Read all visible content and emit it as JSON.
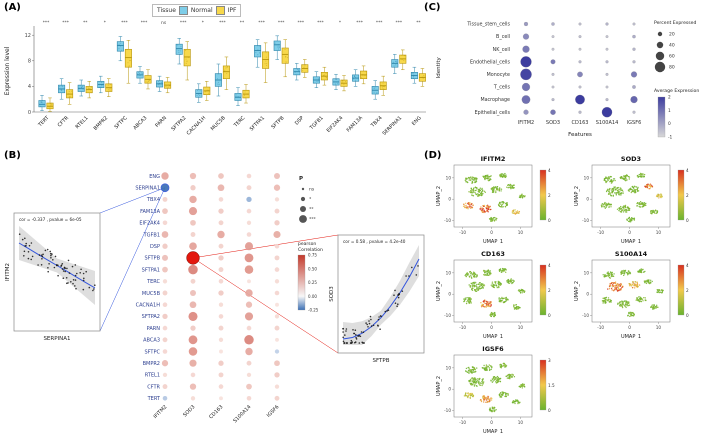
{
  "panels": {
    "a_label": "(A)",
    "b_label": "(B)",
    "c_label": "(C)",
    "d_label": "(D)"
  },
  "chart_data": [
    {
      "id": "A",
      "type": "box",
      "ylabel": "Expression level",
      "ylim": [
        0,
        12.5
      ],
      "yticks": [
        0,
        4,
        8,
        12
      ],
      "legend": {
        "title": "Tissue",
        "items": [
          "Normal",
          "IPF"
        ]
      },
      "categories": [
        "TERT",
        "CFTR",
        "RTEL1",
        "BMPR2",
        "SFTPC",
        "ABCA3",
        "PARN",
        "SFTPA2",
        "CACNA1H",
        "MUC5B",
        "TERC",
        "SFTPA1",
        "SFTPB",
        "DSP",
        "TGFB1",
        "EIF2AK4",
        "FAM13A",
        "TBX4",
        "SERPINA1",
        "ENG"
      ],
      "significance": [
        "***",
        "***",
        "**",
        "*",
        "***",
        "***",
        "ns",
        "***",
        "*",
        "***",
        "**",
        "***",
        "***",
        "***",
        "***",
        "*",
        "***",
        "***",
        "***",
        "**"
      ],
      "series": [
        {
          "name": "Normal",
          "fill": "#7ECDE8",
          "stroke": "#2E86AB",
          "boxes": [
            [
              0.2,
              0.8,
              1.2,
              1.8,
              2.6
            ],
            [
              2.0,
              3.0,
              3.6,
              4.2,
              5.2
            ],
            [
              2.5,
              3.2,
              3.7,
              4.2,
              5.0
            ],
            [
              3.0,
              3.8,
              4.3,
              4.8,
              5.6
            ],
            [
              8.0,
              9.5,
              10.4,
              11.0,
              11.8
            ],
            [
              4.5,
              5.3,
              5.8,
              6.3,
              7.1
            ],
            [
              3.2,
              3.9,
              4.4,
              4.9,
              5.6
            ],
            [
              7.5,
              9.0,
              9.9,
              10.6,
              11.5
            ],
            [
              1.5,
              2.3,
              2.9,
              3.5,
              4.4
            ],
            [
              2.5,
              4.0,
              5.0,
              6.0,
              7.5
            ],
            [
              1.0,
              1.8,
              2.3,
              2.9,
              3.8
            ],
            [
              7.0,
              8.6,
              9.6,
              10.4,
              11.3
            ],
            [
              8.2,
              9.6,
              10.5,
              11.1,
              11.9
            ],
            [
              5.0,
              5.8,
              6.3,
              6.8,
              7.6
            ],
            [
              3.8,
              4.5,
              5.0,
              5.5,
              6.3
            ],
            [
              3.5,
              4.2,
              4.7,
              5.2,
              5.9
            ],
            [
              4.0,
              4.8,
              5.3,
              5.8,
              6.6
            ],
            [
              2.0,
              2.8,
              3.4,
              4.0,
              4.9
            ],
            [
              6.0,
              7.0,
              7.6,
              8.2,
              9.0
            ],
            [
              4.5,
              5.2,
              5.7,
              6.2,
              7.0
            ]
          ]
        },
        {
          "name": "IPF",
          "fill": "#F7D84B",
          "stroke": "#B7950B",
          "boxes": [
            [
              0.1,
              0.5,
              0.9,
              1.4,
              2.2
            ],
            [
              1.2,
              2.2,
              2.8,
              3.5,
              4.6
            ],
            [
              2.2,
              3.0,
              3.5,
              4.0,
              4.8
            ],
            [
              2.4,
              3.2,
              3.8,
              4.4,
              5.2
            ],
            [
              4.5,
              7.0,
              8.5,
              9.8,
              11.2
            ],
            [
              3.6,
              4.5,
              5.1,
              5.7,
              6.6
            ],
            [
              3.0,
              3.7,
              4.2,
              4.7,
              5.4
            ],
            [
              5.0,
              7.2,
              8.6,
              9.8,
              11.0
            ],
            [
              1.8,
              2.7,
              3.3,
              3.9,
              4.8
            ],
            [
              3.5,
              5.2,
              6.3,
              7.2,
              8.6
            ],
            [
              1.4,
              2.2,
              2.8,
              3.4,
              4.3
            ],
            [
              4.6,
              6.8,
              8.2,
              9.4,
              10.8
            ],
            [
              5.5,
              7.6,
              9.0,
              10.0,
              11.3
            ],
            [
              5.4,
              6.2,
              6.8,
              7.4,
              8.2
            ],
            [
              4.2,
              5.0,
              5.6,
              6.2,
              7.0
            ],
            [
              3.3,
              4.0,
              4.5,
              5.0,
              5.7
            ],
            [
              4.4,
              5.2,
              5.8,
              6.4,
              7.2
            ],
            [
              2.6,
              3.5,
              4.1,
              4.7,
              5.6
            ],
            [
              6.6,
              7.6,
              8.3,
              8.9,
              9.7
            ],
            [
              4.0,
              4.8,
              5.4,
              6.0,
              6.8
            ]
          ]
        }
      ]
    },
    {
      "id": "B",
      "type": "dot-matrix",
      "row_label_color": "#2c3e8f",
      "rows": [
        "ENG",
        "SERPINA1",
        "TBX4",
        "FAM13A",
        "EIF2AK4",
        "TGFB1",
        "DSP",
        "SFTPB",
        "SFTPA1",
        "TERC",
        "MUC5B",
        "CACNA1H",
        "SFTPA2",
        "PARN",
        "ABCA3",
        "SFTPC",
        "BMPR2",
        "RTEL1",
        "CFTR",
        "TERT"
      ],
      "cols": [
        "IFITM2",
        "SOD3",
        "CD163",
        "S100A14",
        "IGSF6"
      ],
      "values": [
        [
          0.3,
          0.22,
          0.18,
          0.1,
          0.2
        ],
        [
          -0.34,
          0.15,
          0.25,
          0.12,
          0.22
        ],
        [
          0.12,
          0.3,
          0.1,
          -0.15,
          0.08
        ],
        [
          0.18,
          0.35,
          0.15,
          0.1,
          0.12
        ],
        [
          0.1,
          0.18,
          0.12,
          0.08,
          0.15
        ],
        [
          0.25,
          0.12,
          0.3,
          0.1,
          0.28
        ],
        [
          0.15,
          0.32,
          0.12,
          0.35,
          0.1
        ],
        [
          0.2,
          0.58,
          0.15,
          0.4,
          0.12
        ],
        [
          0.18,
          0.45,
          0.12,
          0.38,
          0.1
        ],
        [
          0.08,
          0.12,
          0.1,
          0.05,
          0.08
        ],
        [
          0.12,
          0.2,
          0.15,
          0.3,
          0.1
        ],
        [
          0.1,
          0.25,
          0.08,
          0.22,
          0.05
        ],
        [
          0.15,
          0.42,
          0.1,
          0.35,
          0.08
        ],
        [
          0.1,
          0.15,
          0.12,
          0.1,
          0.12
        ],
        [
          0.12,
          0.4,
          0.08,
          0.45,
          0.05
        ],
        [
          0.1,
          0.38,
          0.05,
          0.3,
          -0.08
        ],
        [
          0.22,
          0.28,
          0.15,
          0.12,
          0.18
        ],
        [
          0.08,
          0.1,
          0.12,
          0.08,
          0.15
        ],
        [
          0.12,
          0.22,
          0.1,
          0.18,
          0.08
        ],
        [
          -0.1,
          0.08,
          0.05,
          0.1,
          0.12
        ]
      ],
      "size_legend": {
        "title": "P",
        "labels": [
          "ns",
          "*",
          "**",
          "***"
        ]
      },
      "color_legend": {
        "title_lines": [
          "pearson",
          "Correlation"
        ],
        "ticks": [
          0.75,
          0.5,
          0.25,
          0.0,
          -0.25
        ],
        "high": "#C3392B",
        "mid": "#F7F7F7",
        "low": "#3B6FB5"
      },
      "highlights": [
        {
          "row": "SFTPB",
          "col": "SOD3",
          "style": "red"
        },
        {
          "row": "SERPINA1",
          "col": "IFITM2",
          "style": "blue"
        }
      ],
      "insets": [
        {
          "xlabel": "SERPINA1",
          "ylabel": "IFITM2",
          "annotation": "cor = -0.337 , pvalue = 6e-05",
          "trend": "negative",
          "line_color": "#3355DD",
          "connector_color": "#3355DD"
        },
        {
          "xlabel": "SFTPB",
          "ylabel": "SOD3",
          "annotation": "cor = 0.58 , pvalue = 4.2e-40",
          "trend": "positive",
          "line_color": "#3355DD",
          "connector_color": "#E3170D"
        }
      ]
    },
    {
      "id": "C",
      "type": "dot-plot",
      "xlabel": "Features",
      "ylabel": "Identity",
      "rows": [
        "Tissue_stem_cells",
        "B_cell",
        "NK_cell",
        "Endothelial_cells",
        "Monocyte",
        "T_cells",
        "Macrophage",
        "Epithelial_cells"
      ],
      "cols": [
        "IFITM2",
        "SOD3",
        "CD163",
        "S100A14",
        "IGSF6"
      ],
      "cells": [
        [
          [
            15,
            0.2
          ],
          [
            8,
            -0.2
          ],
          [
            3,
            -0.5
          ],
          [
            5,
            -0.3
          ],
          [
            3,
            -0.5
          ]
        ],
        [
          [
            35,
            0.5
          ],
          [
            2,
            -0.6
          ],
          [
            3,
            -0.5
          ],
          [
            2,
            -0.6
          ],
          [
            8,
            -0.2
          ]
        ],
        [
          [
            45,
            0.8
          ],
          [
            2,
            -0.6
          ],
          [
            2,
            -0.6
          ],
          [
            2,
            -0.6
          ],
          [
            6,
            -0.3
          ]
        ],
        [
          [
            85,
            2.0
          ],
          [
            22,
            0.8
          ],
          [
            4,
            -0.4
          ],
          [
            4,
            -0.4
          ],
          [
            5,
            -0.4
          ]
        ],
        [
          [
            88,
            1.8
          ],
          [
            3,
            -0.5
          ],
          [
            30,
            0.6
          ],
          [
            3,
            -0.5
          ],
          [
            35,
            0.8
          ]
        ],
        [
          [
            55,
            0.9
          ],
          [
            2,
            -0.6
          ],
          [
            3,
            -0.5
          ],
          [
            2,
            -0.6
          ],
          [
            10,
            -0.1
          ]
        ],
        [
          [
            60,
            1.0
          ],
          [
            4,
            -0.4
          ],
          [
            70,
            2.0
          ],
          [
            4,
            -0.4
          ],
          [
            45,
            1.2
          ]
        ],
        [
          [
            25,
            0.3
          ],
          [
            28,
            0.9
          ],
          [
            5,
            -0.4
          ],
          [
            78,
            2.2
          ],
          [
            4,
            -0.5
          ]
        ]
      ],
      "percent_legend": {
        "title": "Percent Expressed",
        "ticks": [
          20,
          40,
          60,
          80
        ]
      },
      "avg_legend": {
        "title": "Average Expression",
        "ticks": [
          2,
          1,
          0,
          -1
        ],
        "high": "#3C3C9E",
        "low": "#D8D8D8"
      }
    },
    {
      "id": "D",
      "type": "umap-grid",
      "xlabel": "UMAP_1",
      "ylabel": "UMAP_2",
      "xticks": [
        -10,
        0,
        10
      ],
      "yticks": [
        -10,
        0,
        10
      ],
      "xlim": [
        -13,
        14
      ],
      "ylim": [
        -13,
        16
      ],
      "color_low": "#6AB32E",
      "color_mid": "#F2C94C",
      "color_high": "#D7301F",
      "clusters": [
        [
          -7,
          9,
          2.2,
          1.6
        ],
        [
          -1.5,
          10,
          1.8,
          1.4
        ],
        [
          4,
          11,
          1.4,
          1.1
        ],
        [
          -5,
          3.5,
          3.0,
          2.2
        ],
        [
          1.5,
          4.5,
          2.0,
          1.6
        ],
        [
          6.5,
          6.0,
          1.5,
          1.2
        ],
        [
          -8,
          -3,
          1.8,
          1.5
        ],
        [
          -2,
          -4.5,
          2.2,
          1.8
        ],
        [
          4,
          -2.5,
          1.8,
          1.4
        ],
        [
          8.5,
          -6,
          1.4,
          1.1
        ],
        [
          0.5,
          -9.5,
          1.4,
          1.1
        ],
        [
          10.5,
          1.5,
          1.2,
          1.0
        ]
      ],
      "plots": [
        {
          "title": "IFITM2",
          "scale_max": 4,
          "hot": {
            "6": 0.8,
            "7": 0.9,
            "9": 0.5
          }
        },
        {
          "title": "SOD3",
          "scale_max": 4,
          "hot": {
            "5": 0.8,
            "11": 0.5
          }
        },
        {
          "title": "CD163",
          "scale_max": 4,
          "hot": {
            "7": 0.85
          }
        },
        {
          "title": "S100A14",
          "scale_max": 4,
          "hot": {
            "3": 0.8,
            "4": 0.6
          }
        },
        {
          "title": "IGSF6",
          "scale_max": 3,
          "hot": {
            "7": 0.7,
            "6": 0.4
          }
        }
      ]
    }
  ]
}
